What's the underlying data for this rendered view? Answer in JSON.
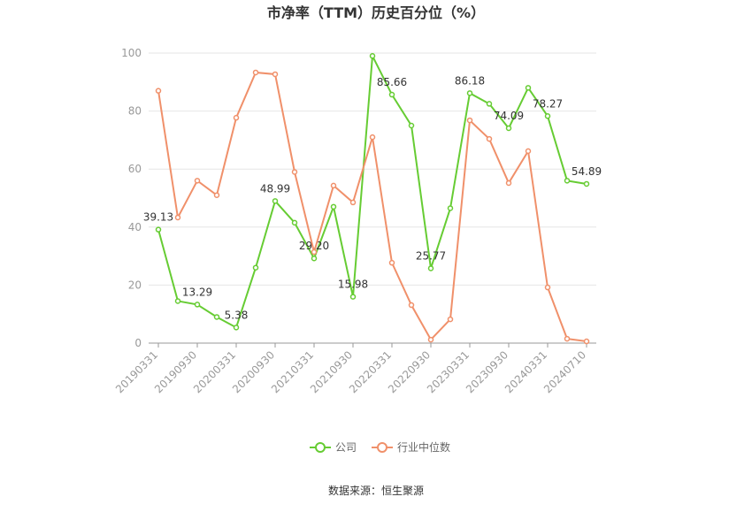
{
  "chart_data": {
    "type": "line",
    "title": "市净率（TTM）历史百分位（%）",
    "categories": [
      "20190331",
      null,
      "20190930",
      null,
      "20200331",
      null,
      "20200930",
      null,
      "20210331",
      null,
      "20210930",
      null,
      "20220331",
      null,
      "20220930",
      null,
      "20230331",
      null,
      "20230930",
      null,
      "20240331",
      null,
      "20240710"
    ],
    "series": [
      {
        "name": "公司",
        "color": "#66cc33",
        "values": [
          39.13,
          14.5,
          13.29,
          9,
          5.38,
          26,
          48.99,
          41.5,
          29.2,
          47,
          15.98,
          99,
          85.66,
          75,
          25.77,
          46.5,
          86.18,
          82.5,
          74.09,
          88,
          78.27,
          56,
          54.89
        ],
        "value_labels": [
          "39.13",
          null,
          "13.29",
          null,
          "5.38",
          null,
          "48.99",
          null,
          "29.20",
          null,
          "15.98",
          null,
          "85.66",
          null,
          "25.77",
          null,
          "86.18",
          null,
          "74.09",
          null,
          "78.27",
          null,
          "54.89"
        ]
      },
      {
        "name": "行业中位数",
        "color": "#f0906a",
        "values": [
          87,
          43.3,
          56,
          51,
          77.7,
          93.3,
          92.7,
          59,
          31.4,
          54.3,
          48.5,
          71,
          27.7,
          13.1,
          1.2,
          8.2,
          76.8,
          70.4,
          55.2,
          66.2,
          19.2,
          1.5,
          0.6
        ]
      }
    ],
    "ylim": [
      0,
      100
    ],
    "yticks": [
      0,
      20,
      40,
      60,
      80,
      100
    ],
    "grid": true,
    "source": "数据来源：恒生聚源"
  }
}
